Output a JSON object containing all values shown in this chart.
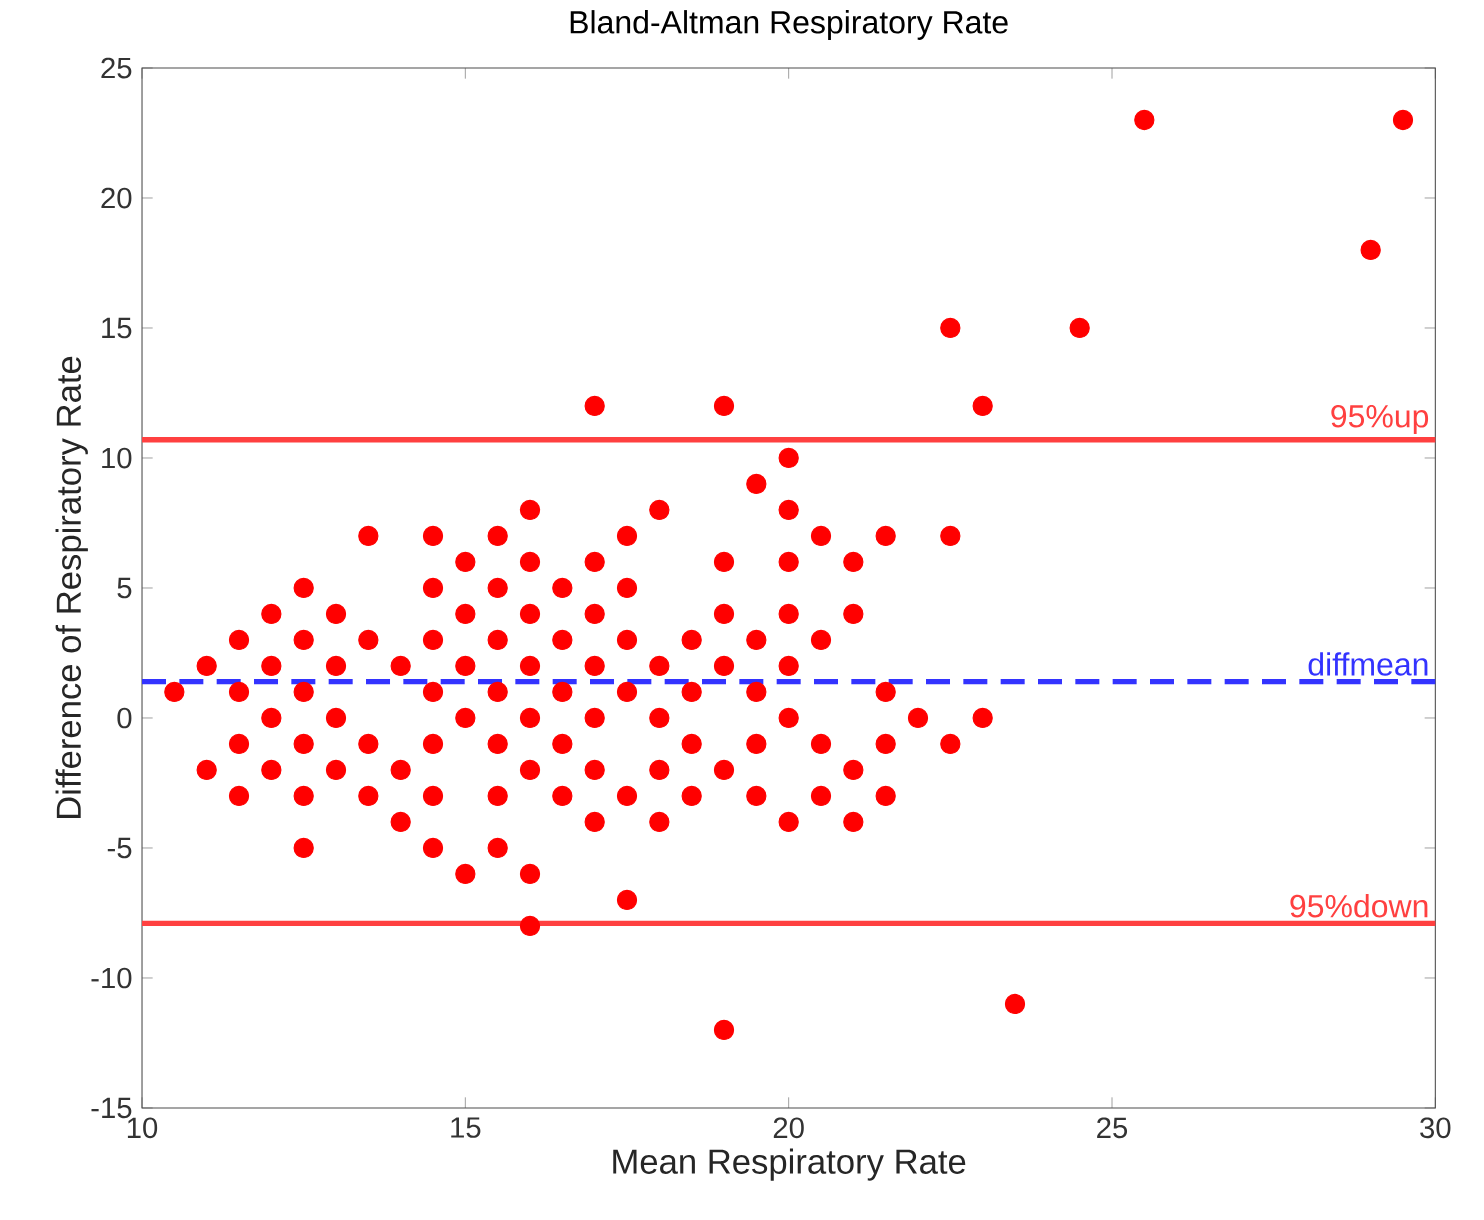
{
  "chart_data": {
    "type": "scatter",
    "title": "Bland-Altman Respiratory Rate",
    "xlabel": "Mean Respiratory Rate",
    "ylabel": "Difference of Respiratory Rate",
    "x": [
      10.5,
      11,
      11,
      11.5,
      11.5,
      11.5,
      11.5,
      12,
      12,
      12,
      12,
      12.5,
      12.5,
      12.5,
      12.5,
      12.5,
      12.5,
      13,
      13,
      13,
      13,
      13.5,
      13.5,
      13.5,
      13.5,
      14,
      14,
      14,
      14.5,
      14.5,
      14.5,
      14.5,
      14.5,
      14.5,
      14.5,
      15,
      15,
      15,
      15,
      15,
      15.5,
      15.5,
      15.5,
      15.5,
      15.5,
      15.5,
      15.5,
      16,
      16,
      16,
      16,
      16,
      16,
      16,
      16,
      16.5,
      16.5,
      16.5,
      16.5,
      16.5,
      17,
      17,
      17,
      17,
      17,
      17,
      17,
      17.5,
      17.5,
      17.5,
      17.5,
      17.5,
      17.5,
      18,
      18,
      18,
      18,
      18,
      18.5,
      18.5,
      18.5,
      18.5,
      19,
      19,
      19,
      19,
      19,
      19,
      19.5,
      19.5,
      19.5,
      19.5,
      19.5,
      20,
      20,
      20,
      20,
      20,
      20,
      20,
      20.5,
      20.5,
      20.5,
      20.5,
      21,
      21,
      21,
      21,
      21.5,
      21.5,
      21.5,
      21.5,
      22,
      22.5,
      22.5,
      22.5,
      23,
      23,
      23.5,
      24.5,
      25.5,
      29,
      29.5
    ],
    "values": [
      1,
      2,
      -2,
      3,
      1,
      -1,
      -3,
      4,
      2,
      0,
      -2,
      5,
      3,
      1,
      -1,
      -3,
      -5,
      4,
      2,
      0,
      -2,
      7,
      3,
      -1,
      -3,
      2,
      -2,
      -4,
      7,
      5,
      3,
      1,
      -1,
      -3,
      -5,
      6,
      4,
      2,
      0,
      -6,
      7,
      5,
      3,
      1,
      -1,
      -3,
      -5,
      8,
      6,
      4,
      2,
      0,
      -2,
      -6,
      -8,
      5,
      3,
      1,
      -1,
      -3,
      12,
      6,
      4,
      2,
      0,
      -2,
      -4,
      7,
      5,
      3,
      1,
      -3,
      -7,
      8,
      2,
      0,
      -2,
      -4,
      3,
      1,
      -1,
      -3,
      12,
      6,
      4,
      2,
      -2,
      -12,
      9,
      3,
      1,
      -1,
      -3,
      10,
      8,
      6,
      4,
      2,
      0,
      -4,
      7,
      3,
      -1,
      -3,
      6,
      4,
      -2,
      -4,
      7,
      1,
      -1,
      -3,
      0,
      15,
      7,
      -1,
      12,
      0,
      -11,
      15,
      23,
      18,
      23
    ],
    "color": "#ff0000",
    "marker": "circle",
    "xlim": [
      10,
      30
    ],
    "ylim": [
      -15,
      25
    ],
    "xticks": [
      10,
      15,
      20,
      25,
      30
    ],
    "yticks": [
      -15,
      -10,
      -5,
      0,
      5,
      10,
      15,
      20,
      25
    ],
    "ref_lines": [
      {
        "axis": "y",
        "value": 10.7,
        "label": "95%up",
        "color": "#ff4040",
        "line_style": "solid"
      },
      {
        "axis": "y",
        "value": 1.4,
        "label": "diffmean",
        "color": "#3333ff",
        "line_style": "dashed"
      },
      {
        "axis": "y",
        "value": -7.9,
        "label": "95%down",
        "color": "#ff4040",
        "line_style": "solid"
      }
    ]
  }
}
